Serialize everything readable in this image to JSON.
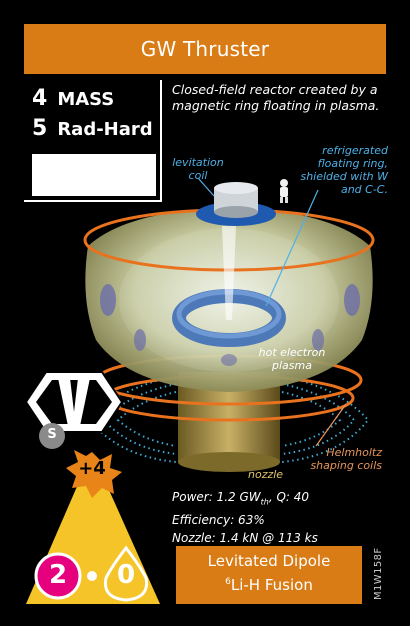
{
  "card": {
    "title": "GW Thruster",
    "stats": {
      "mass_value": "4",
      "mass_label": "MASS",
      "rad_value": "5",
      "rad_label": "Rad-Hard"
    },
    "description": "Closed-field reactor created by a magnetic ring floating in plasma.",
    "annotations": {
      "levitation_coil": "levitation coil",
      "ring": "refrigerated floating ring, shielded with W and C-C.",
      "hot_plasma": "hot electron plasma",
      "helmholtz": "Helmholtz shaping coils",
      "nozzle": "nozzle"
    },
    "type_badge": {
      "letter": "V",
      "sub_letter": "S"
    },
    "bonus": "+4",
    "specs": {
      "power_prefix": "Power: 1.2 GW",
      "power_sub": "th",
      "power_suffix": ", Q: 40",
      "efficiency": "Efficiency: 63%",
      "nozzle": "Nozzle: 1.4 kN @ 113 ks"
    },
    "thrust": "2",
    "fuel_steps": "0",
    "footer": {
      "name": "Levitated Dipole",
      "fuel_sup": "6",
      "fuel_text": "Li-H Fusion"
    },
    "card_id": "M1W158F"
  },
  "colors": {
    "background": "#000000",
    "title_bar": "#d97c16",
    "annotation_blue": "#4fb0e6",
    "helmholtz_orange": "#e7955a",
    "thrust_magenta": "#e6007e",
    "triangle_yellow": "#f5c428"
  },
  "icons": [
    "thermometer-icon",
    "astronaut-icon",
    "hexagon-v-icon",
    "s-circle-icon",
    "explosion-icon"
  ]
}
